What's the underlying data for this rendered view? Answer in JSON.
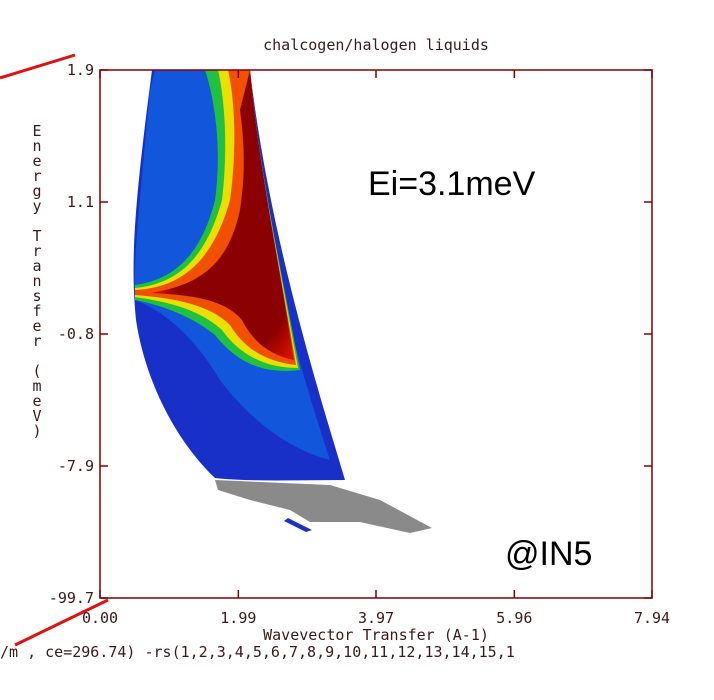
{
  "chart_data": {
    "type": "heatmap",
    "title": "chalcogen/halogen liquids",
    "x_label": "Wavevector Transfer (A-1)",
    "y_label": "Energy Transfer (meV)",
    "footer": "/m , ce=296.74) -rs(1,2,3,4,5,6,7,8,9,10,11,12,13,14,15,1",
    "annotations": [
      "Ei=3.1meV",
      "@IN5"
    ],
    "xlim": [
      0,
      7.94
    ],
    "xticks": [
      {
        "value": 0,
        "label": "0.00"
      },
      1.99,
      3.97,
      5.96,
      7.94
    ],
    "ylim": [
      -99.7,
      1.9
    ],
    "yticks": [
      1.9,
      1.1,
      -0.8,
      -7.9,
      -99.7
    ],
    "frame_color": "#800000"
  }
}
